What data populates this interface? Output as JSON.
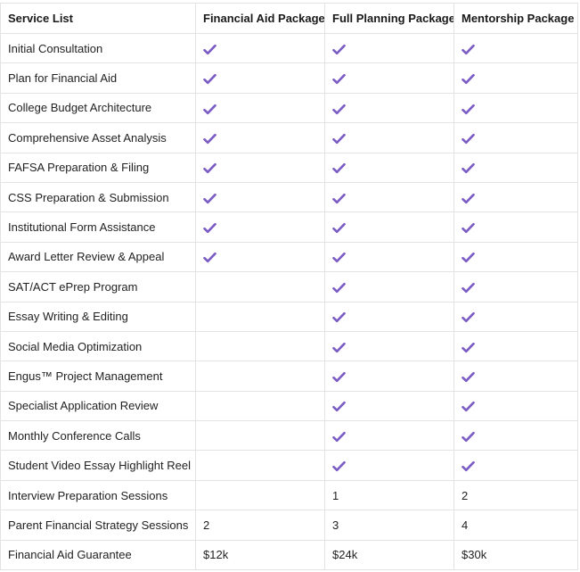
{
  "colors": {
    "check": "#7b5cc4",
    "border": "#e3e3e3"
  },
  "header": {
    "service": "Service List",
    "financial": "Financial Aid Package",
    "full": "Full Planning Package",
    "mentorship": "Mentorship Package"
  },
  "rows": [
    {
      "service": "Initial Consultation",
      "financial": "check",
      "full": "check",
      "mentorship": "check"
    },
    {
      "service": "Plan for Financial Aid",
      "financial": "check",
      "full": "check",
      "mentorship": "check"
    },
    {
      "service": "College Budget Architecture",
      "financial": "check",
      "full": "check",
      "mentorship": "check"
    },
    {
      "service": "Comprehensive Asset Analysis",
      "financial": "check",
      "full": "check",
      "mentorship": "check"
    },
    {
      "service": "FAFSA Preparation & Filing",
      "financial": "check",
      "full": "check",
      "mentorship": "check"
    },
    {
      "service": "CSS Preparation & Submission",
      "financial": "check",
      "full": "check",
      "mentorship": "check"
    },
    {
      "service": "Institutional Form Assistance",
      "financial": "check",
      "full": "check",
      "mentorship": "check"
    },
    {
      "service": "Award Letter Review & Appeal",
      "financial": "check",
      "full": "check",
      "mentorship": "check"
    },
    {
      "service": "SAT/ACT ePrep Program",
      "financial": "",
      "full": "check",
      "mentorship": "check"
    },
    {
      "service": "Essay Writing & Editing",
      "financial": "",
      "full": "check",
      "mentorship": "check"
    },
    {
      "service": "Social Media Optimization",
      "financial": "",
      "full": "check",
      "mentorship": "check"
    },
    {
      "service": "Engus™ Project Management",
      "financial": "",
      "full": "check",
      "mentorship": "check"
    },
    {
      "service": "Specialist Application Review",
      "financial": "",
      "full": "check",
      "mentorship": "check"
    },
    {
      "service": "Monthly Conference Calls",
      "financial": "",
      "full": "check",
      "mentorship": "check"
    },
    {
      "service": "Student Video Essay Highlight Reel",
      "financial": "",
      "full": "check",
      "mentorship": "check"
    },
    {
      "service": "Interview Preparation Sessions",
      "financial": "",
      "full": "1",
      "mentorship": "2"
    },
    {
      "service": "Parent Financial Strategy Sessions",
      "financial": "2",
      "full": "3",
      "mentorship": "4"
    },
    {
      "service": "Financial Aid Guarantee",
      "financial": "$12k",
      "full": "$24k",
      "mentorship": "$30k"
    }
  ]
}
